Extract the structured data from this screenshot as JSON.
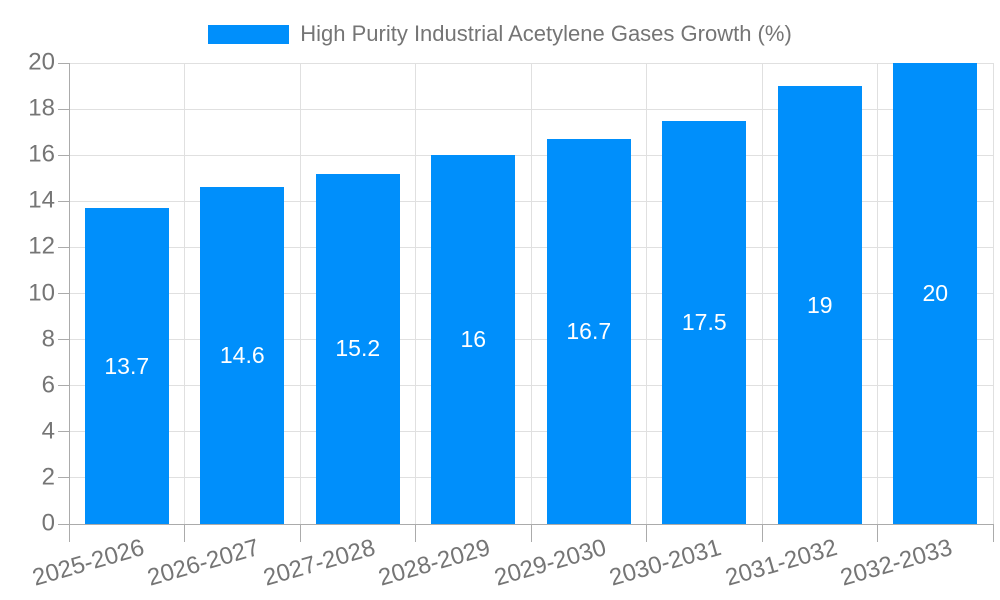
{
  "legend": {
    "label": "High Purity Industrial Acetylene Gases Growth (%)",
    "position": "top"
  },
  "chart_data": {
    "type": "bar",
    "title": "High Purity Industrial Acetylene Gases Growth (%)",
    "categories": [
      "2025-2026",
      "2026-2027",
      "2027-2028",
      "2028-2029",
      "2029-2030",
      "2030-2031",
      "2031-2032",
      "2032-2033"
    ],
    "values": [
      13.7,
      14.6,
      15.2,
      16,
      16.7,
      17.5,
      19,
      20
    ],
    "bar_labels": [
      "13.7",
      "14.6",
      "15.2",
      "16",
      "16.7",
      "17.5",
      "19",
      "20"
    ],
    "xlabel": "",
    "ylabel": "",
    "ylim": [
      0,
      20
    ],
    "ytick_step": 2,
    "ytick_labels": [
      "0",
      "2",
      "4",
      "6",
      "8",
      "10",
      "12",
      "14",
      "16",
      "18",
      "20"
    ],
    "grid": true,
    "legend_position": "top",
    "colors": {
      "bar": "#008FFB",
      "value_label": "#FFFFFF",
      "axis_label": "#757575",
      "grid": "#E0E0E0",
      "axis_line": "#ABABAB"
    }
  }
}
